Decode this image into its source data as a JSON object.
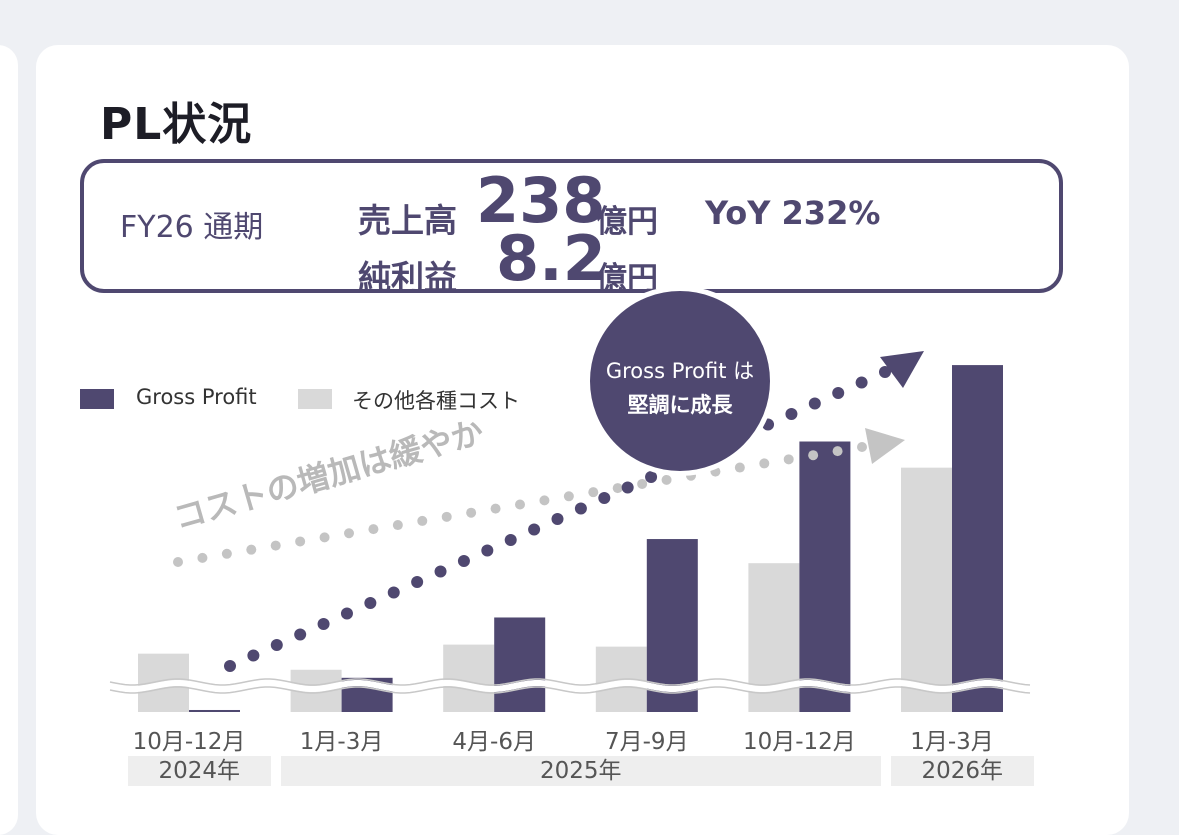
{
  "title": "PL状況",
  "summary": {
    "period": "FY26 通期",
    "revenue_label": "売上高",
    "revenue_value": "238",
    "revenue_unit": "億円",
    "yoy": "YoY 232%",
    "net_income_label": "純利益",
    "net_income_value": "8.2",
    "net_income_unit": "億円"
  },
  "bubble": {
    "line1": "Gross Profit は",
    "line2": "堅調に成長"
  },
  "cost_annotation": "コストの増加は緩やか",
  "colors": {
    "gross_profit": "#4f4870",
    "other_costs": "#d9d9d9",
    "cost_trend": "#c4c4c4"
  },
  "chart_data": {
    "type": "bar",
    "categories": [
      "10月-12月",
      "1月-3月",
      "4月-6月",
      "7月-9月",
      "10月-12月",
      "1月-3月"
    ],
    "year_groups": [
      {
        "label": "2024年",
        "categories": 1
      },
      {
        "label": "2025年",
        "categories": 4
      },
      {
        "label": "2026年",
        "categories": 1
      }
    ],
    "series": [
      {
        "name": "その他各種コスト",
        "values": [
          58,
          42,
          67,
          65,
          148,
          243
        ]
      },
      {
        "name": "Gross Profit",
        "values": [
          2,
          34,
          94,
          172,
          269,
          345
        ]
      }
    ],
    "ylim": [
      0,
      360
    ],
    "axis_break": true,
    "legend": {
      "position": "top-left"
    },
    "grid": false
  }
}
